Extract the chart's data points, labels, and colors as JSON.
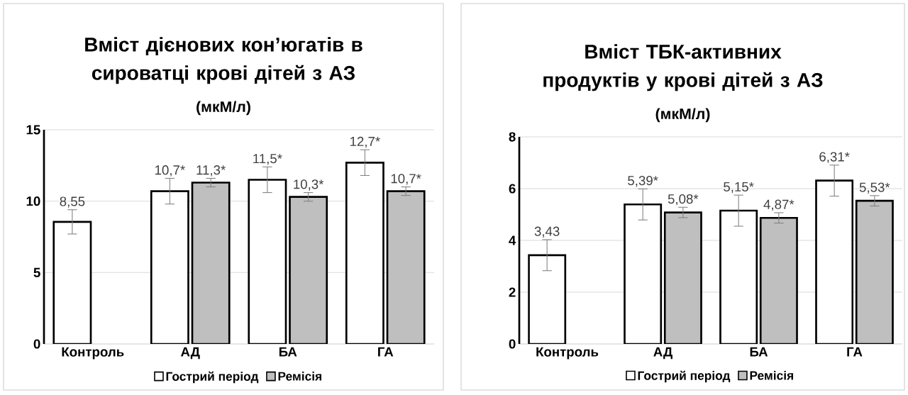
{
  "chart_data": [
    {
      "type": "bar",
      "title": "Вміст дієнових кон’югатів в сироватці крові дітей з АЗ",
      "subtitle": "(мкМ/л)",
      "categories": [
        "Контроль",
        "АД",
        "БА",
        "ГА"
      ],
      "ylim": [
        0,
        15
      ],
      "yticks": [
        0,
        5,
        10,
        15
      ],
      "grid": "y",
      "legend": "bottom",
      "series": [
        {
          "name": "Гострий період",
          "color": "#ffffff",
          "values": [
            8.55,
            10.7,
            11.5,
            12.7
          ],
          "errors": [
            0.85,
            0.9,
            0.9,
            0.9
          ],
          "value_labels": [
            "8,55",
            "10,7*",
            "11,5*",
            "12,7*"
          ]
        },
        {
          "name": "Ремісія",
          "color": "#bfbfbf",
          "values": [
            null,
            11.3,
            10.3,
            10.7
          ],
          "errors": [
            null,
            0.3,
            0.3,
            0.3
          ],
          "value_labels": [
            null,
            "11,3*",
            "10,3*",
            "10,7*"
          ]
        }
      ]
    },
    {
      "type": "bar",
      "title": "Вміст ТБК-активних продуктів у крові дітей з АЗ",
      "subtitle": "(мкМ/л)",
      "categories": [
        "Контроль",
        "АД",
        "БА",
        "ГА"
      ],
      "ylim": [
        0,
        8
      ],
      "yticks": [
        0,
        2,
        4,
        6,
        8
      ],
      "grid": "y",
      "legend": "bottom",
      "series": [
        {
          "name": "Гострий період",
          "color": "#ffffff",
          "values": [
            3.43,
            5.39,
            5.15,
            6.31
          ],
          "errors": [
            0.6,
            0.6,
            0.6,
            0.6
          ],
          "value_labels": [
            "3,43",
            "5,39*",
            "5,15*",
            "6,31*"
          ]
        },
        {
          "name": "Ремісія",
          "color": "#bfbfbf",
          "values": [
            null,
            5.08,
            4.87,
            5.53
          ],
          "errors": [
            null,
            0.2,
            0.2,
            0.2
          ],
          "value_labels": [
            null,
            "5,08*",
            "4,87*",
            "5,53*"
          ]
        }
      ]
    }
  ]
}
